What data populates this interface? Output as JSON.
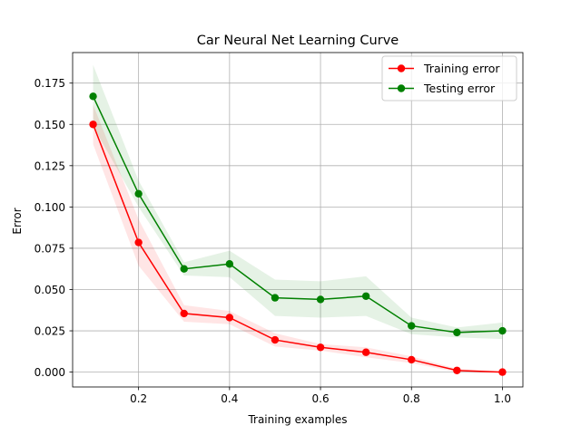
{
  "chart_data": {
    "type": "line",
    "title": "Car Neural Net Learning Curve",
    "xlabel": "Training examples",
    "ylabel": "Error",
    "xlim": [
      0.055,
      1.045
    ],
    "ylim": [
      -0.009,
      0.1935
    ],
    "xticks": [
      0.2,
      0.4,
      0.6,
      0.8,
      1.0
    ],
    "xtick_labels": [
      "0.2",
      "0.4",
      "0.6",
      "0.8",
      "1.0"
    ],
    "yticks": [
      0.0,
      0.025,
      0.05,
      0.075,
      0.1,
      0.125,
      0.15,
      0.175
    ],
    "ytick_labels": [
      "0.000",
      "0.025",
      "0.050",
      "0.075",
      "0.100",
      "0.125",
      "0.150",
      "0.175"
    ],
    "grid": true,
    "legend_position": "top-right",
    "x": [
      0.1,
      0.2,
      0.3,
      0.4,
      0.5,
      0.6,
      0.7,
      0.8,
      0.9,
      1.0
    ],
    "series": [
      {
        "name": "Training error",
        "color": "#ff0000",
        "band_color": "#ff0000",
        "values": [
          0.15,
          0.0785,
          0.0355,
          0.033,
          0.0195,
          0.015,
          0.012,
          0.0075,
          0.001,
          0.0
        ],
        "band_low": [
          0.138,
          0.0645,
          0.0305,
          0.029,
          0.0155,
          0.013,
          0.009,
          0.0055,
          0.0,
          -0.0005
        ],
        "band_high": [
          0.162,
          0.0925,
          0.0405,
          0.037,
          0.0235,
          0.017,
          0.015,
          0.0095,
          0.002,
          0.0005
        ]
      },
      {
        "name": "Testing error",
        "color": "#008000",
        "band_color": "#008000",
        "values": [
          0.167,
          0.108,
          0.0625,
          0.0655,
          0.045,
          0.044,
          0.046,
          0.028,
          0.024,
          0.025
        ],
        "band_low": [
          0.149,
          0.1,
          0.0585,
          0.0575,
          0.034,
          0.033,
          0.034,
          0.023,
          0.021,
          0.02
        ],
        "band_high": [
          0.186,
          0.116,
          0.0665,
          0.0735,
          0.056,
          0.055,
          0.058,
          0.033,
          0.027,
          0.03
        ]
      }
    ]
  }
}
